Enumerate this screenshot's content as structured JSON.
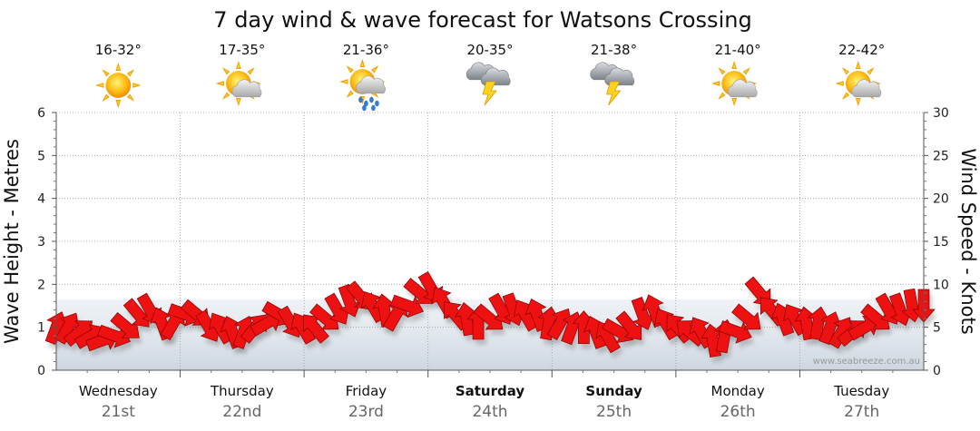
{
  "chart_data": {
    "type": "line",
    "title": "7 day wind & wave forecast for Watsons Crossing",
    "y_left_label": "Wave Height - Metres",
    "y_right_label": "Wind Speed - Knots",
    "y_left_range": [
      0,
      6
    ],
    "y_left_ticks": [
      "0",
      "1",
      "2",
      "3",
      "4",
      "5",
      "6"
    ],
    "y_right_range": [
      0,
      30
    ],
    "y_right_ticks": [
      "0",
      "5",
      "10",
      "15",
      "20",
      "25",
      "30"
    ],
    "credit": "www.seabreeze.com.au",
    "days": [
      {
        "name": "Wednesday",
        "date": "21st",
        "bold": false,
        "temp": "16-32°",
        "icon": "sunny-icon"
      },
      {
        "name": "Thursday",
        "date": "22nd",
        "bold": false,
        "temp": "17-35°",
        "icon": "partly-cloudy-icon"
      },
      {
        "name": "Friday",
        "date": "23rd",
        "bold": false,
        "temp": "21-36°",
        "icon": "partly-cloudy-rain-icon"
      },
      {
        "name": "Saturday",
        "date": "24th",
        "bold": true,
        "temp": "20-35°",
        "icon": "thunderstorm-icon"
      },
      {
        "name": "Sunday",
        "date": "25th",
        "bold": true,
        "temp": "21-38°",
        "icon": "thunderstorm-icon"
      },
      {
        "name": "Monday",
        "date": "26th",
        "bold": false,
        "temp": "21-40°",
        "icon": "partly-cloudy-icon"
      },
      {
        "name": "Tuesday",
        "date": "27th",
        "bold": false,
        "temp": "22-42°",
        "icon": "partly-cloudy-icon"
      }
    ],
    "wind_series": {
      "name": "Wind speed (knots) with direction arrows",
      "color": "#ee1111",
      "speeds": [
        5.0,
        5.0,
        4.5,
        4.0,
        3.5,
        4.0,
        5.0,
        6.5,
        7.0,
        5.5,
        5.5,
        6.5,
        6.5,
        5.0,
        5.0,
        4.5,
        4.5,
        5.0,
        5.5,
        6.5,
        5.5,
        5.0,
        5.0,
        6.0,
        7.0,
        8.0,
        8.5,
        7.5,
        7.0,
        6.5,
        7.5,
        9.0,
        9.5,
        8.0,
        6.5,
        6.0,
        5.5,
        6.0,
        7.0,
        7.0,
        6.5,
        6.5,
        5.5,
        5.5,
        5.0,
        5.0,
        4.5,
        4.0,
        4.5,
        5.0,
        6.5,
        7.0,
        5.5,
        5.0,
        4.5,
        4.5,
        3.5,
        4.0,
        4.5,
        6.0,
        9.0,
        7.0,
        6.0,
        6.0,
        5.5,
        5.5,
        5.0,
        4.5,
        4.5,
        5.0,
        6.0,
        7.0,
        7.0,
        7.5,
        7.5
      ],
      "directions_deg": [
        290,
        300,
        320,
        330,
        340,
        20,
        40,
        50,
        60,
        250,
        300,
        20,
        40,
        60,
        240,
        250,
        290,
        310,
        330,
        30,
        60,
        240,
        230,
        40,
        60,
        70,
        50,
        240,
        260,
        300,
        20,
        40,
        60,
        240,
        230,
        260,
        270,
        40,
        60,
        70,
        240,
        250,
        280,
        300,
        290,
        270,
        250,
        240,
        30,
        50,
        70,
        250,
        240,
        230,
        220,
        240,
        260,
        280,
        20,
        40,
        50,
        230,
        250,
        240,
        260,
        280,
        290,
        300,
        320,
        330,
        40,
        60,
        70,
        80,
        90
      ]
    }
  }
}
